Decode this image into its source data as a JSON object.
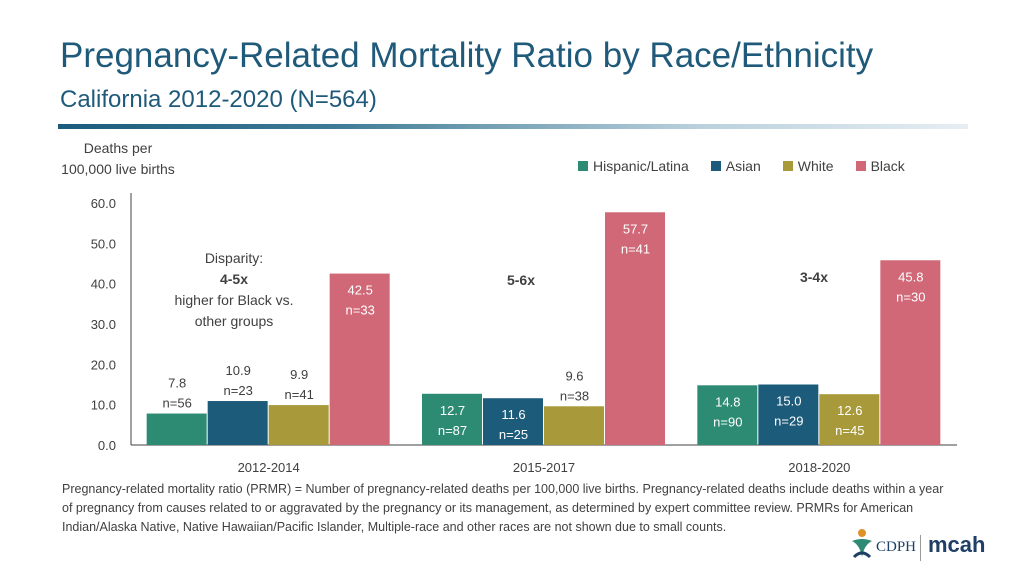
{
  "header": {
    "title": "Pregnancy-Related Mortality Ratio by Race/Ethnicity",
    "subtitle": "California 2012-2020 (N=564)"
  },
  "colors": {
    "hispanic": "#2e8b73",
    "asian": "#1c5b7a",
    "white": "#a89a3a",
    "black": "#d06878",
    "axis": "#404040",
    "accent": "#1f5a7a"
  },
  "chart_data": {
    "type": "bar",
    "title": "Pregnancy-Related Mortality Ratio by Race/Ethnicity",
    "ylabel_lines": [
      "Deaths per",
      "100,000 live births"
    ],
    "xlabel": "",
    "ylim": [
      0,
      60
    ],
    "yticks": [
      "0.0",
      "10.0",
      "20.0",
      "30.0",
      "40.0",
      "50.0",
      "60.0"
    ],
    "categories": [
      "2012-2014",
      "2015-2017",
      "2018-2020"
    ],
    "series": [
      {
        "name": "Hispanic/Latina",
        "color_key": "hispanic",
        "values": [
          7.8,
          12.7,
          14.8
        ],
        "labels": [
          "7.8",
          "12.7",
          "14.8"
        ],
        "counts": [
          "n=56",
          "n=87",
          "n=90"
        ]
      },
      {
        "name": "Asian",
        "color_key": "asian",
        "values": [
          10.9,
          11.6,
          15.0
        ],
        "labels": [
          "10.9",
          "11.6",
          "15.0"
        ],
        "counts": [
          "n=23",
          "n=25",
          "n=29"
        ]
      },
      {
        "name": "White",
        "color_key": "white",
        "values": [
          9.9,
          9.6,
          12.6
        ],
        "labels": [
          "9.9",
          "9.6",
          "12.6"
        ],
        "counts": [
          "n=41",
          "n=38",
          "n=45"
        ]
      },
      {
        "name": "Black",
        "color_key": "black",
        "values": [
          42.5,
          57.7,
          45.8
        ],
        "labels": [
          "42.5",
          "57.7",
          "45.8"
        ],
        "counts": [
          "n=33",
          "n=41",
          "n=30"
        ]
      }
    ],
    "annotations": [
      {
        "category": "2012-2014",
        "lines": [
          {
            "text": "Disparity:",
            "bold": false
          },
          {
            "text": "4-5x",
            "bold": true
          },
          {
            "text": "higher for Black vs.",
            "bold": false
          },
          {
            "text": "other groups",
            "bold": false
          }
        ]
      },
      {
        "category": "2015-2017",
        "lines": [
          {
            "text": "5-6x",
            "bold": true
          }
        ]
      },
      {
        "category": "2018-2020",
        "lines": [
          {
            "text": "3-4x",
            "bold": true
          }
        ]
      }
    ]
  },
  "footnote": "Pregnancy-related mortality ratio (PRMR) = Number of pregnancy-related deaths per 100,000 live births. Pregnancy-related deaths include deaths within a year of pregnancy from causes related to or aggravated by the pregnancy or its management, as determined by expert committee review. PRMRs for American Indian/Alaska Native, Native Hawaiian/Pacific Islander, Multiple-race and other races are not shown due to small counts.",
  "logo": {
    "cdph": "CDPH",
    "mcah": "mcah"
  }
}
